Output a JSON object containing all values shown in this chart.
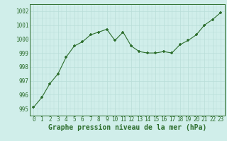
{
  "x": [
    0,
    1,
    2,
    3,
    4,
    5,
    6,
    7,
    8,
    9,
    10,
    11,
    12,
    13,
    14,
    15,
    16,
    17,
    18,
    19,
    20,
    21,
    22,
    23
  ],
  "y": [
    995.1,
    995.8,
    996.8,
    997.5,
    998.7,
    999.5,
    999.8,
    1000.3,
    1000.5,
    1000.7,
    999.9,
    1000.5,
    999.5,
    999.1,
    999.0,
    999.0,
    999.1,
    999.0,
    999.6,
    999.9,
    1000.3,
    1001.0,
    1001.4,
    1001.9
  ],
  "line_color": "#2d6e2d",
  "marker_color": "#2d6e2d",
  "bg_color": "#d0eeea",
  "grid_color": "#b8ddd8",
  "xlabel": "Graphe pression niveau de la mer (hPa)",
  "ylim": [
    994.5,
    1002.5
  ],
  "xlim": [
    -0.5,
    23.5
  ],
  "yticks": [
    995,
    996,
    997,
    998,
    999,
    1000,
    1001,
    1002
  ],
  "xticks": [
    0,
    1,
    2,
    3,
    4,
    5,
    6,
    7,
    8,
    9,
    10,
    11,
    12,
    13,
    14,
    15,
    16,
    17,
    18,
    19,
    20,
    21,
    22,
    23
  ],
  "tick_fontsize": 5.5,
  "xlabel_fontsize": 7
}
